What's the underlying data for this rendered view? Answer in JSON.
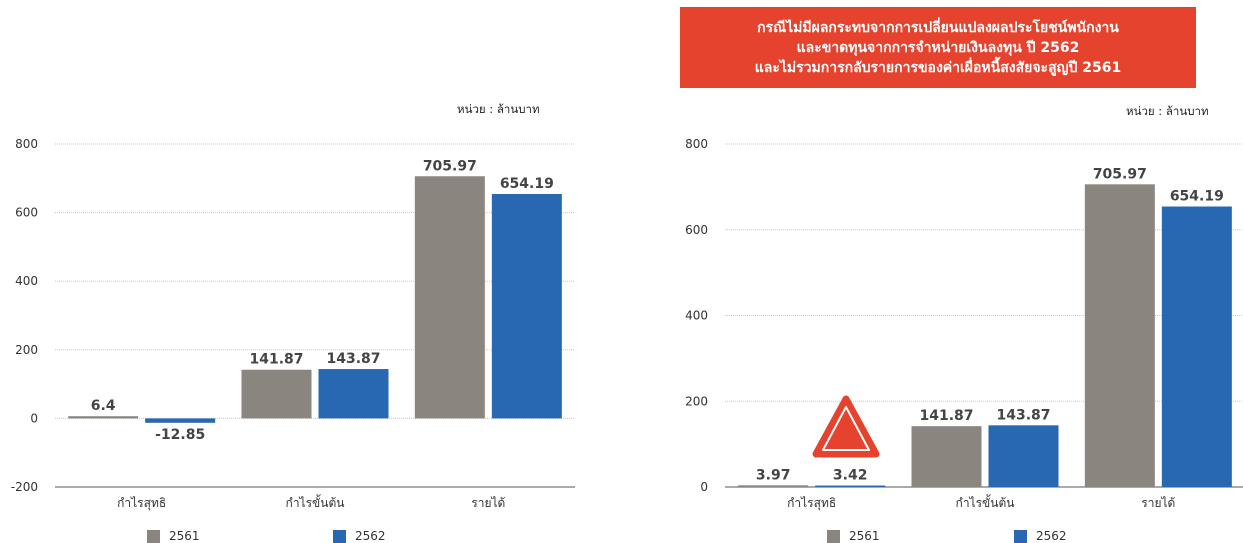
{
  "colors": {
    "series_2561": "#8b857f",
    "series_2562": "#2867b2",
    "banner_bg": "#e5432d",
    "warning_icon": "#e5432d",
    "grid": "#c8c8c8"
  },
  "chart_data": [
    {
      "type": "bar",
      "unit_label": "หน่วย : ล้านบาท",
      "categories": [
        "กำไรสุทธิ",
        "กำไรขั้นต้น",
        "รายได้"
      ],
      "series": [
        {
          "name": "2561",
          "values": [
            6.4,
            141.87,
            705.97
          ],
          "labels": [
            "6.4",
            "141.87",
            "705.97"
          ]
        },
        {
          "name": "2562",
          "values": [
            -12.85,
            143.87,
            654.19
          ],
          "labels": [
            "-12.85",
            "143.87",
            "654.19"
          ]
        }
      ],
      "ylim": [
        -200,
        800
      ],
      "yticks": [
        "-200",
        "0",
        "200",
        "400",
        "600",
        "800"
      ],
      "grid": true,
      "legend": "bottom"
    },
    {
      "type": "bar",
      "banner_lines": [
        "กรณีไม่มีผลกระทบจากการเปลี่ยนแปลงผลประโยชน์พนักงาน",
        "และขาดทุนจากการจำหน่ายเงินลงทุน ปี 2562",
        "และไม่รวมการกลับรายการของค่าเผื่อหนี้สงสัยจะสูญปี 2561"
      ],
      "unit_label": "หน่วย : ล้านบาท",
      "categories": [
        "กำไรสุทธิ",
        "กำไรขั้นต้น",
        "รายได้"
      ],
      "series": [
        {
          "name": "2561",
          "values": [
            3.97,
            141.87,
            705.97
          ],
          "labels": [
            "3.97",
            "141.87",
            "705.97"
          ]
        },
        {
          "name": "2562",
          "values": [
            3.42,
            143.87,
            654.19
          ],
          "labels": [
            "3.42",
            "143.87",
            "654.19"
          ]
        }
      ],
      "ylim": [
        0,
        800
      ],
      "yticks": [
        "0",
        "200",
        "400",
        "600",
        "800"
      ],
      "grid": true,
      "legend": "bottom",
      "annotation": "warning-triangle"
    }
  ]
}
